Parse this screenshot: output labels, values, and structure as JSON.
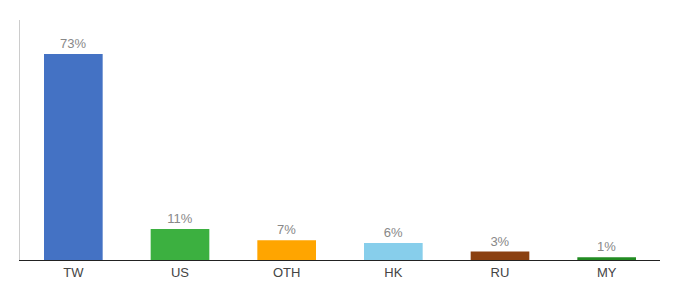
{
  "chart_data": {
    "type": "bar",
    "categories": [
      "TW",
      "US",
      "OTH",
      "HK",
      "RU",
      "MY"
    ],
    "values": [
      73,
      11,
      7,
      6,
      3,
      1
    ],
    "value_labels": [
      "73%",
      "11%",
      "7%",
      "6%",
      "3%",
      "1%"
    ],
    "colors": [
      "#4472C4",
      "#3CB040",
      "#FFA500",
      "#87CEEB",
      "#8B4010",
      "#228B22"
    ],
    "data_labels": true,
    "ylim": [
      0,
      85
    ],
    "tick_labels": "x",
    "grid": false
  }
}
